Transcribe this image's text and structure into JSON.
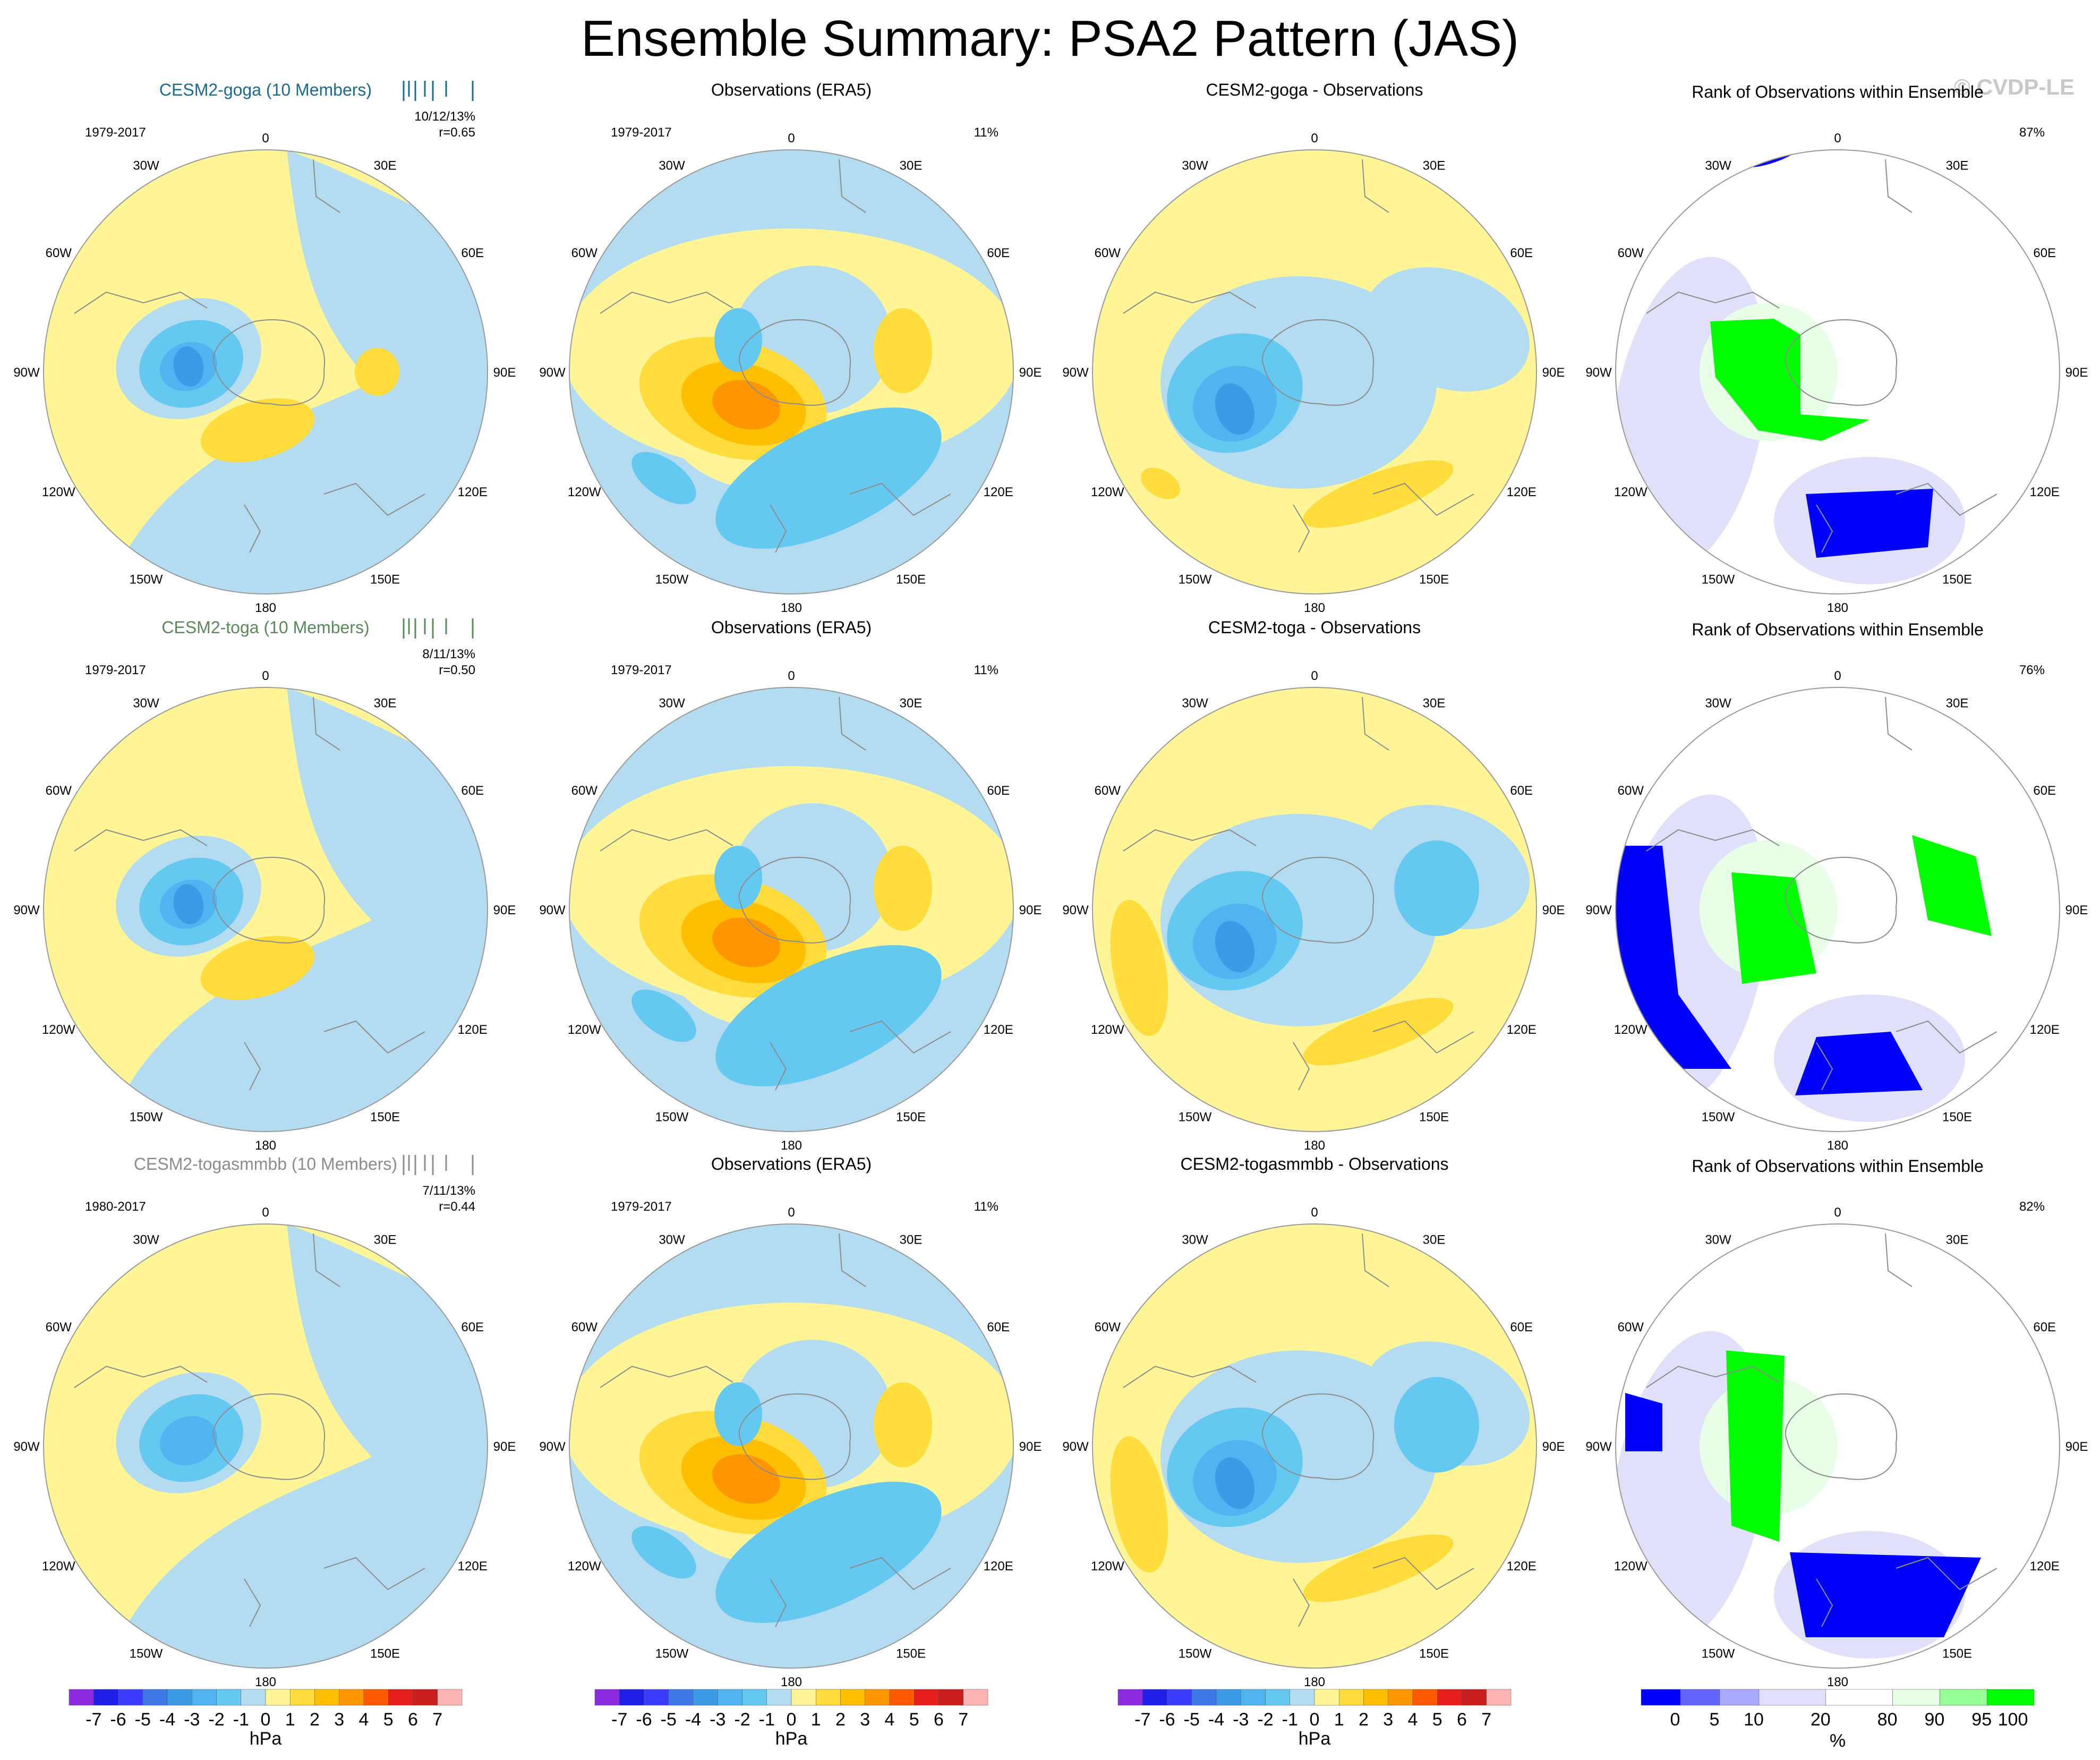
{
  "figure": {
    "title": "Ensemble Summary: PSA2 Pattern (JAS)",
    "credit": "© CVDP-LE"
  },
  "colors": {
    "land": "#ffffff",
    "ocean_bg": "#ffffff",
    "credit": "#c8c8c8",
    "goga_title": "#1a6b8f",
    "toga_title": "#5a8a5a",
    "togasmmbb_title": "#8c8c8c"
  },
  "hpa_colorbar": {
    "labels": [
      "-7",
      "-6",
      "-5",
      "-4",
      "-3",
      "-2",
      "-1",
      "0",
      "1",
      "2",
      "3",
      "4",
      "5",
      "6",
      "7"
    ],
    "colors": [
      "#8a2be2",
      "#1e1ee6",
      "#3c3cff",
      "#3c78e6",
      "#3c9be6",
      "#50b4f0",
      "#64c8f0",
      "#b4dcf0",
      "#fff596",
      "#ffdc3c",
      "#ffbe00",
      "#ff9600",
      "#ff5a00",
      "#e61e1e",
      "#c81e1e",
      "#ffb4b4"
    ],
    "unit": "hPa"
  },
  "rank_colorbar": {
    "labels": [
      "0",
      "5",
      "10",
      "20",
      "80",
      "90",
      "95",
      "100"
    ],
    "colors": [
      "#0000ff",
      "#6464ff",
      "#aaaaff",
      "#e0e0fa",
      "#ffffff",
      "#e6ffe6",
      "#96ff96",
      "#00ff00"
    ],
    "unit": "%"
  },
  "chart_data": {
    "type": "polar-contour-panels",
    "projection": "south-polar-stereographic",
    "longitude_labels": [
      "0",
      "30E",
      "60E",
      "90E",
      "120E",
      "150E",
      "180",
      "150W",
      "120W",
      "90W",
      "60W",
      "30W"
    ],
    "rows": [
      {
        "model": "CESM2-goga (10 Members)",
        "model_period": "1979-2017",
        "model_stats": "10/12/13%",
        "model_r": "r=0.65",
        "obs_title": "Observations (ERA5)",
        "obs_period": "1979-2017",
        "obs_pct": "11%",
        "diff_title": "CESM2-goga - Observations",
        "rank_title": "Rank of Observations within Ensemble",
        "rank_pct": "87%"
      },
      {
        "model": "CESM2-toga (10 Members)",
        "model_period": "1979-2017",
        "model_stats": "8/11/13%",
        "model_r": "r=0.50",
        "obs_title": "Observations (ERA5)",
        "obs_period": "1979-2017",
        "obs_pct": "11%",
        "diff_title": "CESM2-toga - Observations",
        "rank_title": "Rank of Observations within Ensemble",
        "rank_pct": "76%"
      },
      {
        "model": "CESM2-togasmmbb (10 Members)",
        "model_period": "1980-2017",
        "model_stats": "7/11/13%",
        "model_r": "r=0.44",
        "obs_title": "Observations (ERA5)",
        "obs_period": "1979-2017",
        "obs_pct": "11%",
        "diff_title": "CESM2-togasmmbb - Observations",
        "rank_title": "Rank of Observations within Ensemble",
        "rank_pct": "82%"
      }
    ]
  }
}
